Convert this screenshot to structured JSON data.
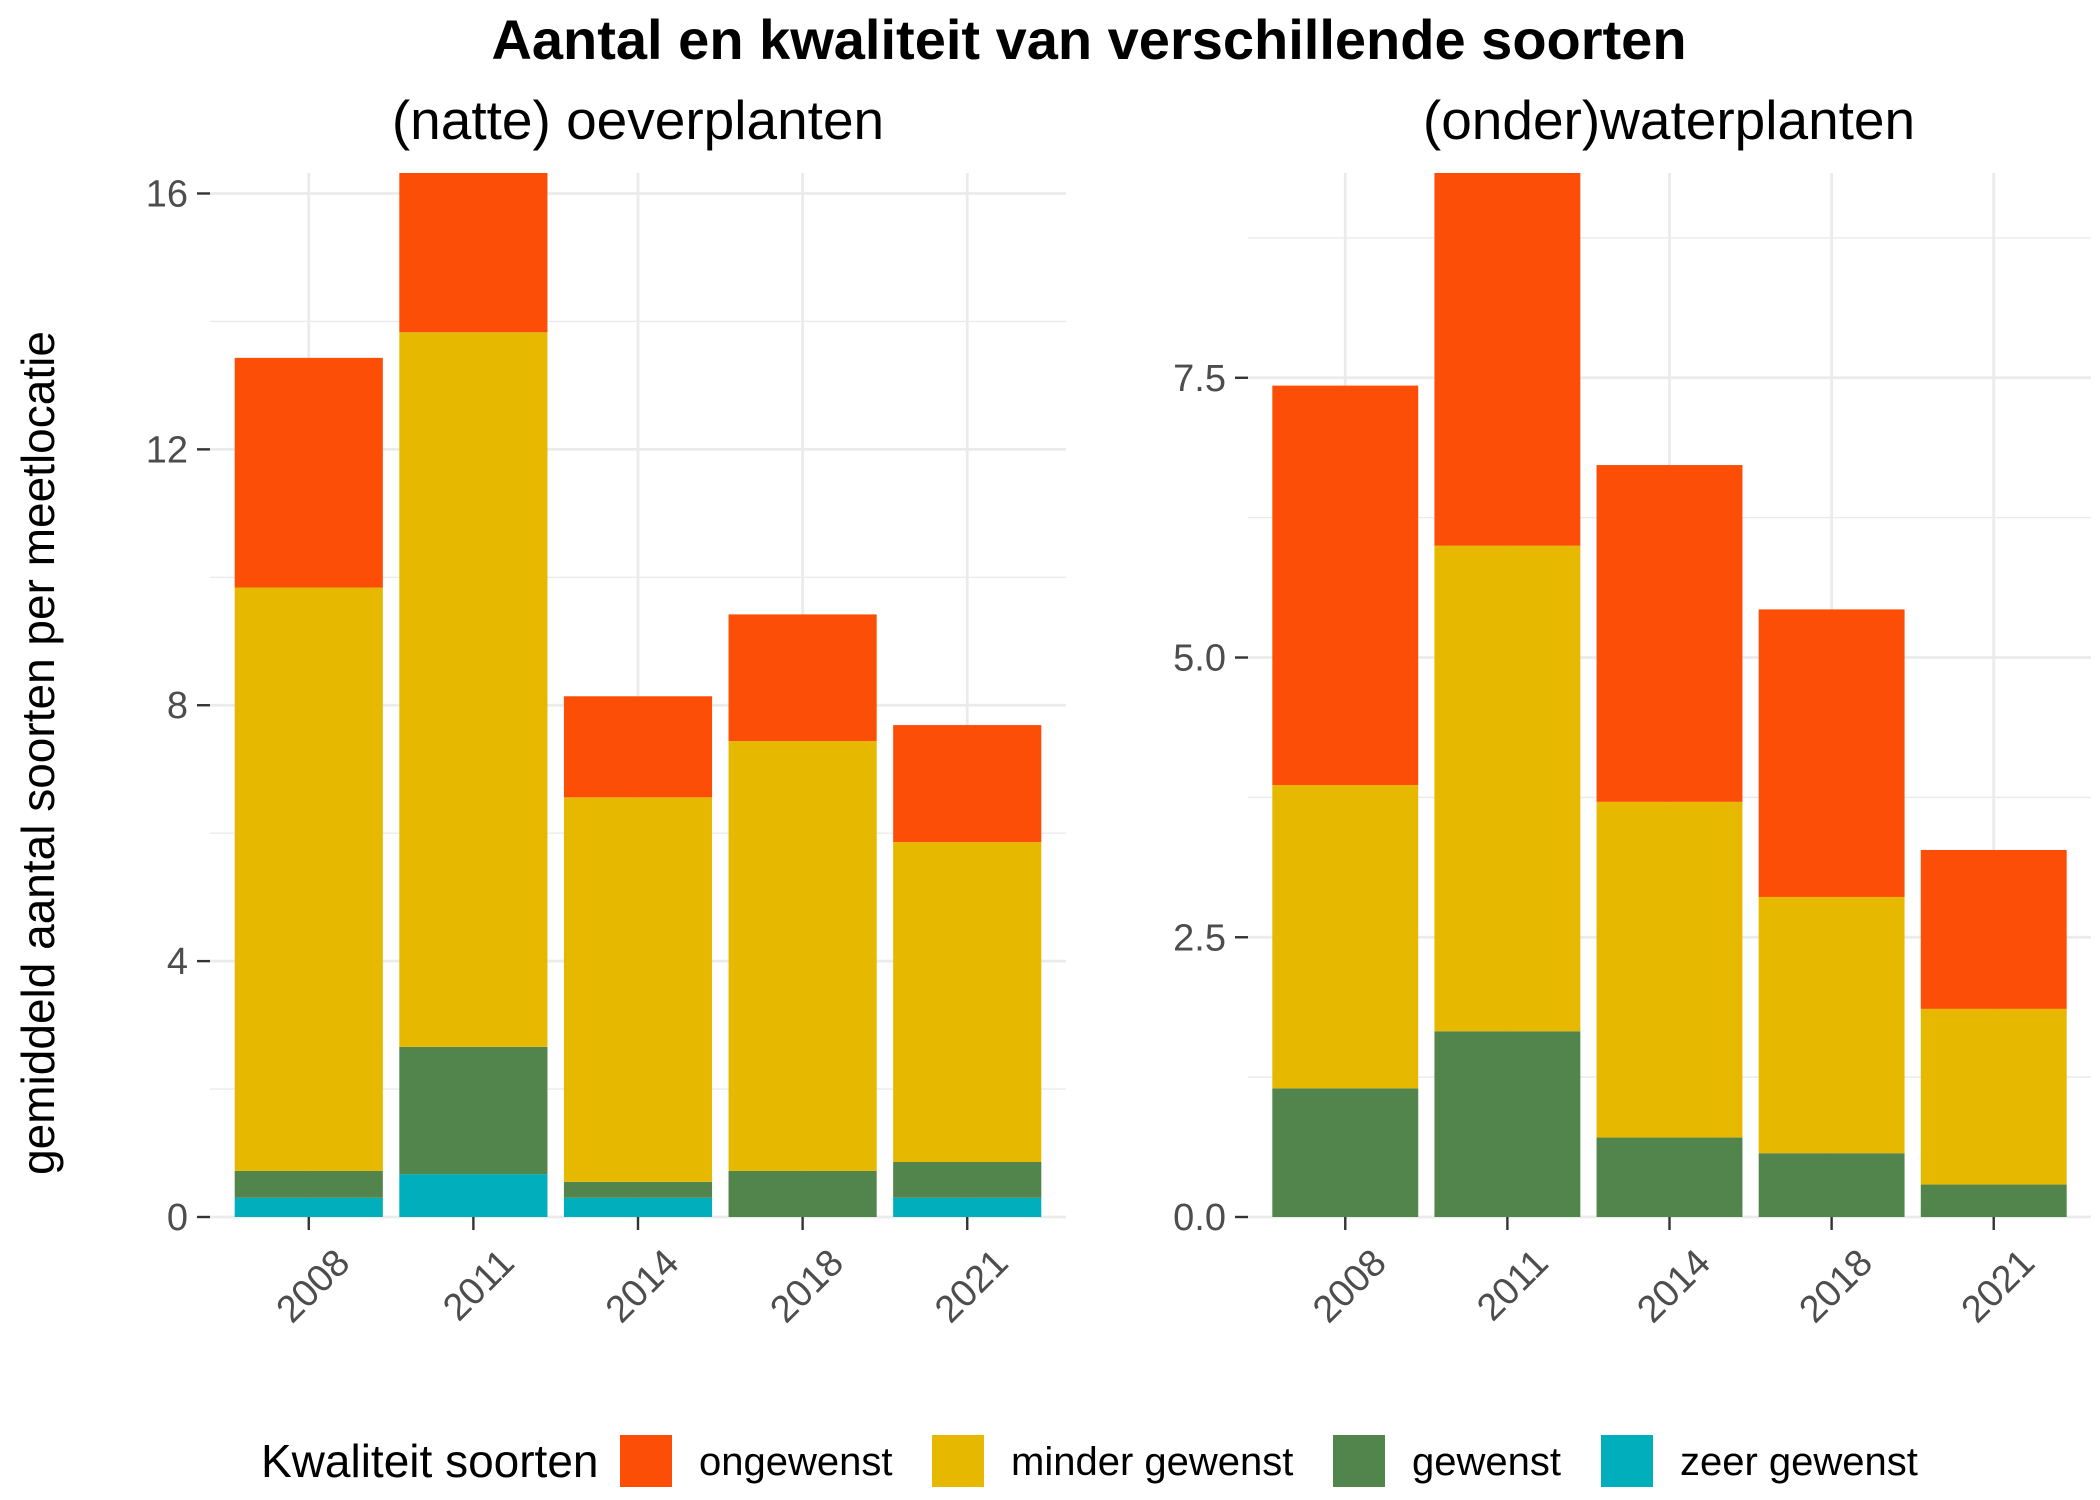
{
  "figure": {
    "title": "Aantal en kwaliteit van verschillende soorten",
    "legend": {
      "title": "Kwaliteit soorten",
      "position": "bottom",
      "items": [
        {
          "label": "ongewenst",
          "color": "#FC4E07"
        },
        {
          "label": "minder gewenst",
          "color": "#E7B800"
        },
        {
          "label": "gewenst",
          "color": "#52854C"
        },
        {
          "label": "zeer gewenst",
          "color": "#00AFBB"
        }
      ]
    }
  },
  "chart_data": [
    {
      "type": "bar",
      "stacked": true,
      "stack_order": "bottom-to-top",
      "subtitle": "(natte) oeverplanten",
      "xlabel": "",
      "ylabel": "gemiddeld aantal soorten per meetlocatie",
      "grid": true,
      "categories": [
        "2008",
        "2011",
        "2014",
        "2018",
        "2021"
      ],
      "ylim": [
        0,
        16.32
      ],
      "yticks": [
        0,
        4,
        8,
        12,
        16
      ],
      "ytick_labels": [
        "0",
        "4",
        "8",
        "12",
        "16"
      ],
      "series": [
        {
          "name": "zeer gewenst",
          "color": "#00AFBB",
          "values": [
            0.3,
            0.67,
            0.3,
            0,
            0.3
          ]
        },
        {
          "name": "gewenst",
          "color": "#52854C",
          "values": [
            0.42,
            1.99,
            0.25,
            0.72,
            0.56
          ]
        },
        {
          "name": "minder gewenst",
          "color": "#E7B800",
          "values": [
            9.12,
            11.17,
            6.01,
            6.72,
            5.0
          ]
        },
        {
          "name": "ongewenst",
          "color": "#FC4E07",
          "values": [
            3.59,
            2.49,
            1.58,
            1.98,
            1.83
          ]
        }
      ]
    },
    {
      "type": "bar",
      "stacked": true,
      "stack_order": "bottom-to-top",
      "subtitle": "(onder)waterplanten",
      "xlabel": "",
      "ylabel": "",
      "grid": true,
      "categories": [
        "2008",
        "2011",
        "2014",
        "2018",
        "2021"
      ],
      "ylim": [
        0,
        9.33
      ],
      "yticks": [
        0,
        2.5,
        5,
        7.5
      ],
      "ytick_labels": [
        "0.0",
        "2.5",
        "5.0",
        "7.5"
      ],
      "series": [
        {
          "name": "zeer gewenst",
          "color": "#00AFBB",
          "values": [
            0,
            0,
            0,
            0,
            0
          ]
        },
        {
          "name": "gewenst",
          "color": "#52854C",
          "values": [
            1.15,
            1.66,
            0.71,
            0.57,
            0.29
          ]
        },
        {
          "name": "minder gewenst",
          "color": "#E7B800",
          "values": [
            2.71,
            4.34,
            3.0,
            2.29,
            1.57
          ]
        },
        {
          "name": "ongewenst",
          "color": "#FC4E07",
          "values": [
            3.57,
            3.33,
            3.01,
            2.57,
            1.42
          ]
        }
      ]
    }
  ]
}
